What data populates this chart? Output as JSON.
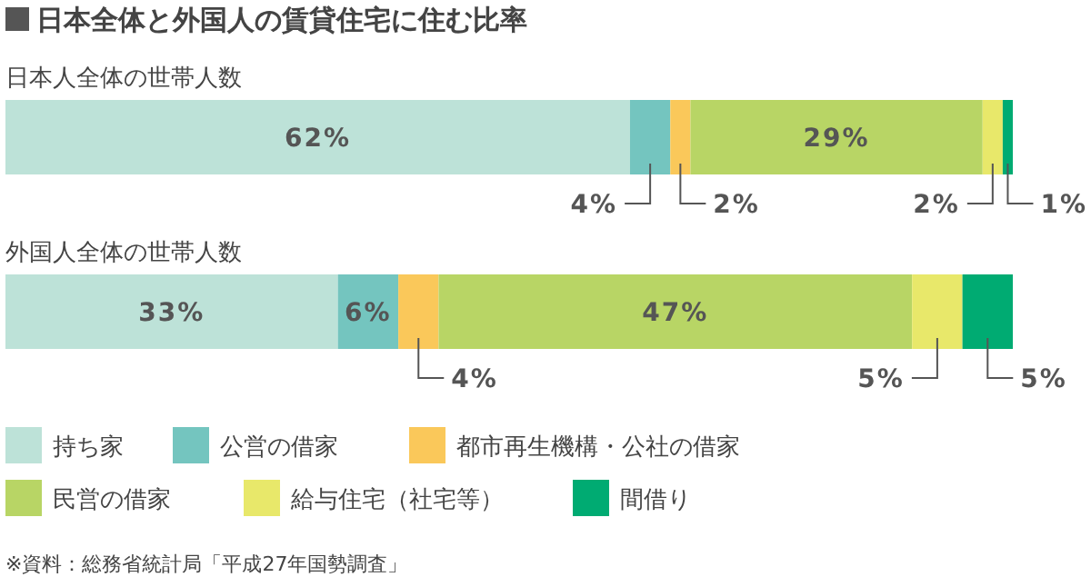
{
  "chart_data": {
    "type": "bar",
    "orientation": "horizontal",
    "stacked": true,
    "title": "日本全体と外国人の賃貸住宅に住む比率",
    "categories": [
      "日本人全体の世帯人数",
      "外国人全体の世帯人数"
    ],
    "xlim": [
      0,
      100
    ],
    "legend": "bottom",
    "data_labels": true,
    "series": [
      {
        "name": "持ち家",
        "color": "#bde2d8",
        "values": [
          62,
          33
        ],
        "value_labels": [
          "62%",
          "33%"
        ]
      },
      {
        "name": "公営の借家",
        "color": "#74c5bf",
        "values": [
          4,
          6
        ],
        "value_labels": [
          "4%",
          "6%"
        ]
      },
      {
        "name": "都市再生機構・公社の借家",
        "color": "#fac85a",
        "values": [
          2,
          4
        ],
        "value_labels": [
          "2%",
          "4%"
        ]
      },
      {
        "name": "民営の借家",
        "color": "#b8d565",
        "values": [
          29,
          47
        ],
        "value_labels": [
          "29%",
          "47%"
        ]
      },
      {
        "name": "給与住宅（社宅等）",
        "color": "#e8e86a",
        "values": [
          2,
          5
        ],
        "value_labels": [
          "2%",
          "5%"
        ]
      },
      {
        "name": "間借り",
        "color": "#00ab72",
        "values": [
          1,
          5
        ],
        "value_labels": [
          "1%",
          "5%"
        ]
      }
    ],
    "annotations": [
      "※資料：総務省統計局「平成27年国勢調査」"
    ]
  }
}
